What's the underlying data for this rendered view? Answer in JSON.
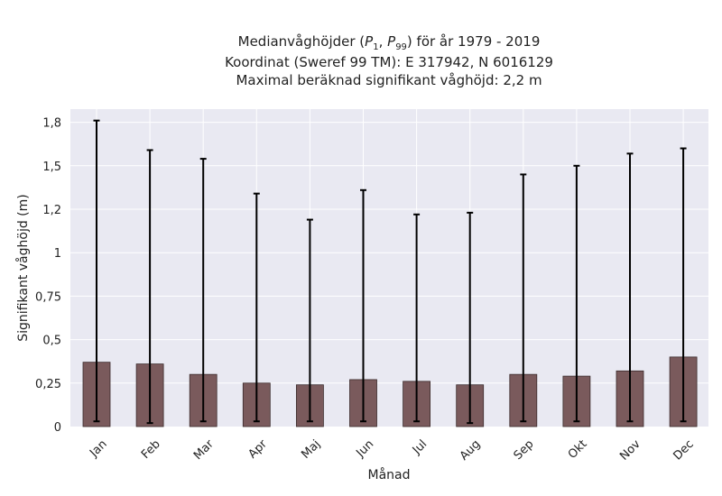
{
  "chart_data": {
    "type": "bar",
    "title_lines": [
      "Medianvåghöjder (P1, P99) för år 1979 - 2019",
      "Koordinat (Sweref 99 TM): E 317942, N 6016129",
      "Maximal beräknad signifikant våghöjd: 2,2 m"
    ],
    "title_main": {
      "pre": "Medianvåghöjder (",
      "p_lo": "P",
      "p_lo_sub": "1",
      "sep": ", ",
      "p_hi": "P",
      "p_hi_sub": "99",
      "post": ") för år 1979 - 2019"
    },
    "xlabel": "Månad",
    "ylabel": "Signifikant våghöjd (m)",
    "ylim": [
      0,
      1.85
    ],
    "yticks": [
      0,
      0.25,
      0.5,
      0.75,
      1.0,
      1.25,
      1.5,
      1.75
    ],
    "ytick_labels": [
      "0",
      "0,25",
      "0,5",
      "0,75",
      "1",
      "1,2",
      "1,5",
      "1,8"
    ],
    "categories": [
      "Jan",
      "Feb",
      "Mar",
      "Apr",
      "Maj",
      "Jun",
      "Jul",
      "Aug",
      "Sep",
      "Okt",
      "Nov",
      "Dec"
    ],
    "values": [
      0.37,
      0.36,
      0.3,
      0.25,
      0.24,
      0.27,
      0.26,
      0.24,
      0.3,
      0.29,
      0.32,
      0.4
    ],
    "p1": [
      0.03,
      0.02,
      0.03,
      0.03,
      0.03,
      0.03,
      0.03,
      0.02,
      0.03,
      0.03,
      0.03,
      0.03
    ],
    "p99": [
      1.76,
      1.59,
      1.54,
      1.34,
      1.19,
      1.36,
      1.22,
      1.23,
      1.45,
      1.5,
      1.57,
      1.6
    ],
    "grid": true,
    "colors": {
      "bar": "#7a5a5c",
      "bar_edge": "#3a2a2b",
      "error": "#000000",
      "plot_bg": "#e9e9f2",
      "grid": "#ffffff"
    }
  }
}
